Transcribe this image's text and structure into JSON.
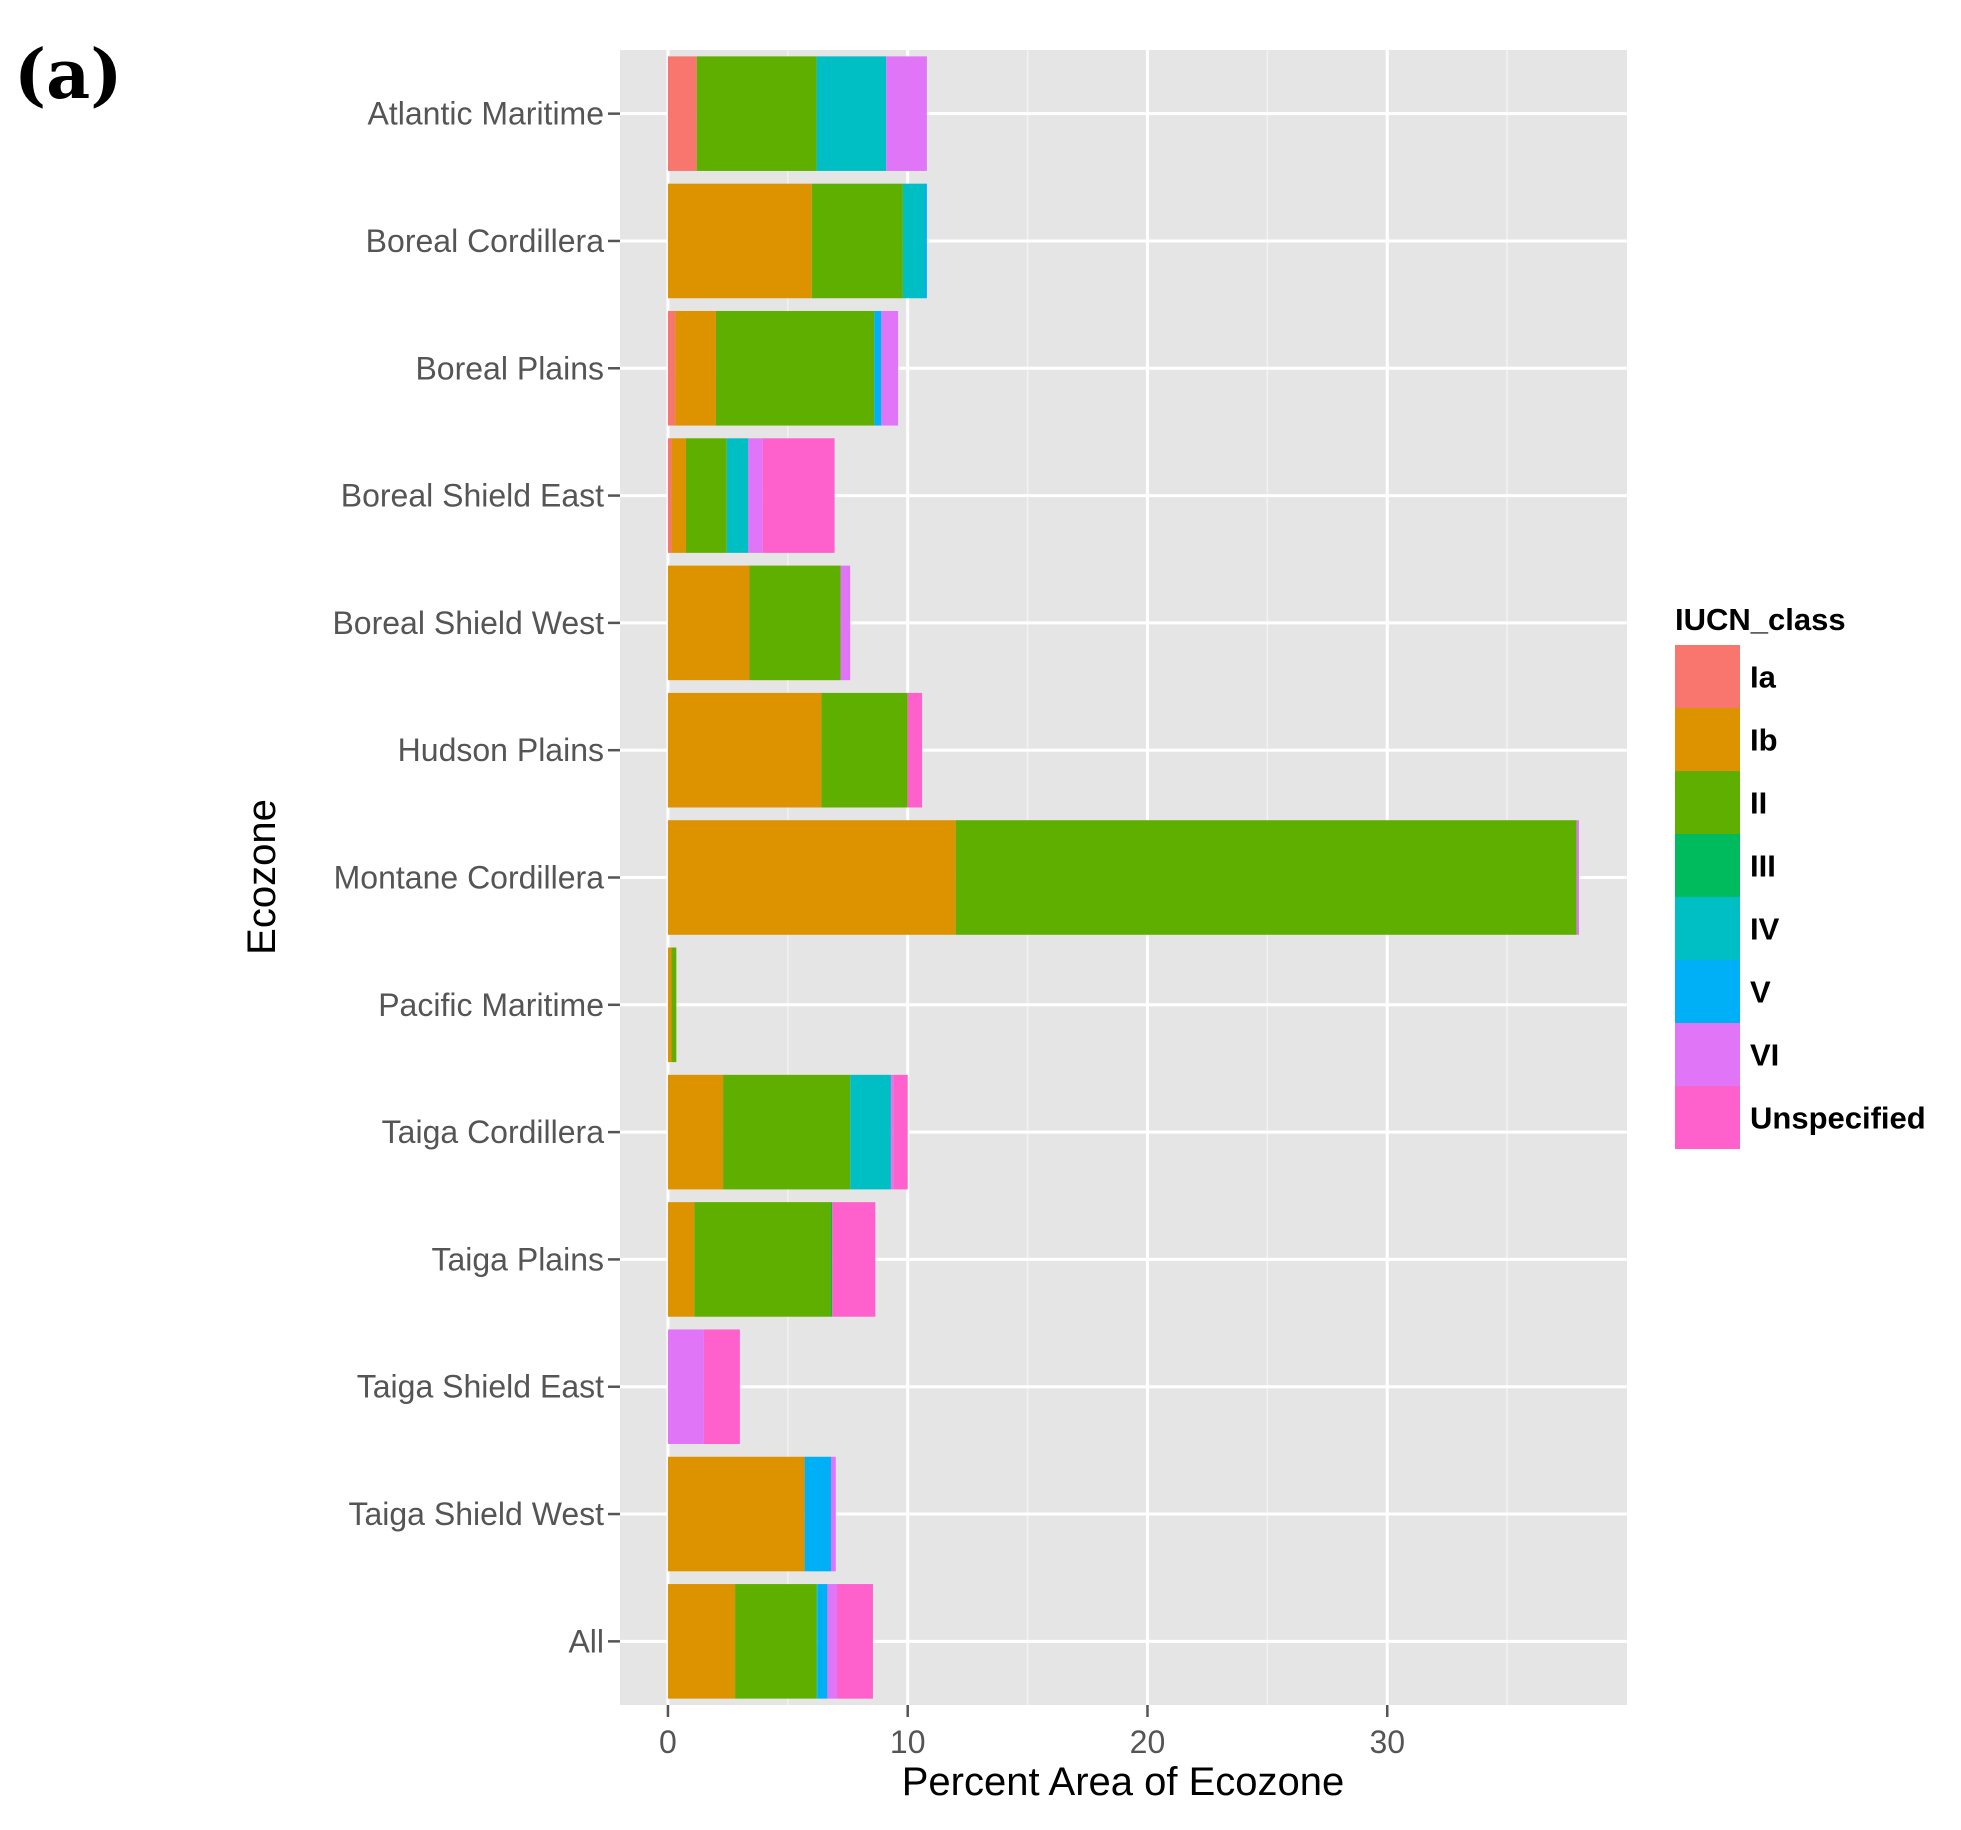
{
  "panel_label": "(a)",
  "chart_data": {
    "type": "bar",
    "orientation": "horizontal",
    "stacked": true,
    "xlabel": "Percent Area of Ecozone",
    "ylabel": "Ecozone",
    "xlim": [
      -2,
      40
    ],
    "xticks": [
      0,
      10,
      20,
      30
    ],
    "grid": true,
    "categories": [
      "Atlantic Maritime",
      "Boreal Cordillera",
      "Boreal Plains",
      "Boreal Shield East",
      "Boreal Shield West",
      "Hudson Plains",
      "Montane Cordillera",
      "Pacific Maritime",
      "Taiga Cordillera",
      "Taiga Plains",
      "Taiga Shield East",
      "Taiga Shield West",
      "All"
    ],
    "legend_title": "IUCN_class",
    "legend_position": "right",
    "series": [
      {
        "name": "Ia",
        "color": "#F8766D",
        "values": [
          1.2,
          0,
          0.3,
          0.15,
          0,
          0,
          0,
          0,
          0,
          0,
          0,
          0,
          0
        ]
      },
      {
        "name": "Ib",
        "color": "#DD9200",
        "values": [
          0,
          6.0,
          1.7,
          0.6,
          3.4,
          6.4,
          12.0,
          0.15,
          2.3,
          1.1,
          0,
          5.7,
          2.8
        ]
      },
      {
        "name": "II",
        "color": "#5FAF00",
        "values": [
          5.0,
          3.8,
          6.6,
          1.7,
          3.8,
          3.6,
          25.9,
          0.2,
          5.3,
          5.7,
          0,
          0,
          3.4
        ]
      },
      {
        "name": "III",
        "color": "#00BA5E",
        "values": [
          0,
          0,
          0,
          0,
          0,
          0,
          0,
          0,
          0,
          0.05,
          0,
          0,
          0
        ]
      },
      {
        "name": "IV",
        "color": "#00BFC4",
        "values": [
          2.9,
          0.9,
          0,
          0.9,
          0,
          0,
          0,
          0,
          1.7,
          0,
          0,
          0,
          0.05
        ]
      },
      {
        "name": "V",
        "color": "#00B0F6",
        "values": [
          0,
          0.1,
          0.3,
          0,
          0,
          0,
          0,
          0,
          0,
          0,
          0,
          1.1,
          0.4
        ]
      },
      {
        "name": "VI",
        "color": "#E076F7",
        "values": [
          1.7,
          0,
          0.7,
          0.6,
          0.4,
          0,
          0.1,
          0,
          0.1,
          0,
          1.5,
          0.2,
          0.4
        ]
      },
      {
        "name": "Unspecified",
        "color": "#FF61CC",
        "values": [
          0,
          0,
          0,
          3.0,
          0,
          0.6,
          0,
          0,
          0.6,
          1.8,
          1.5,
          0,
          1.5
        ]
      }
    ]
  }
}
